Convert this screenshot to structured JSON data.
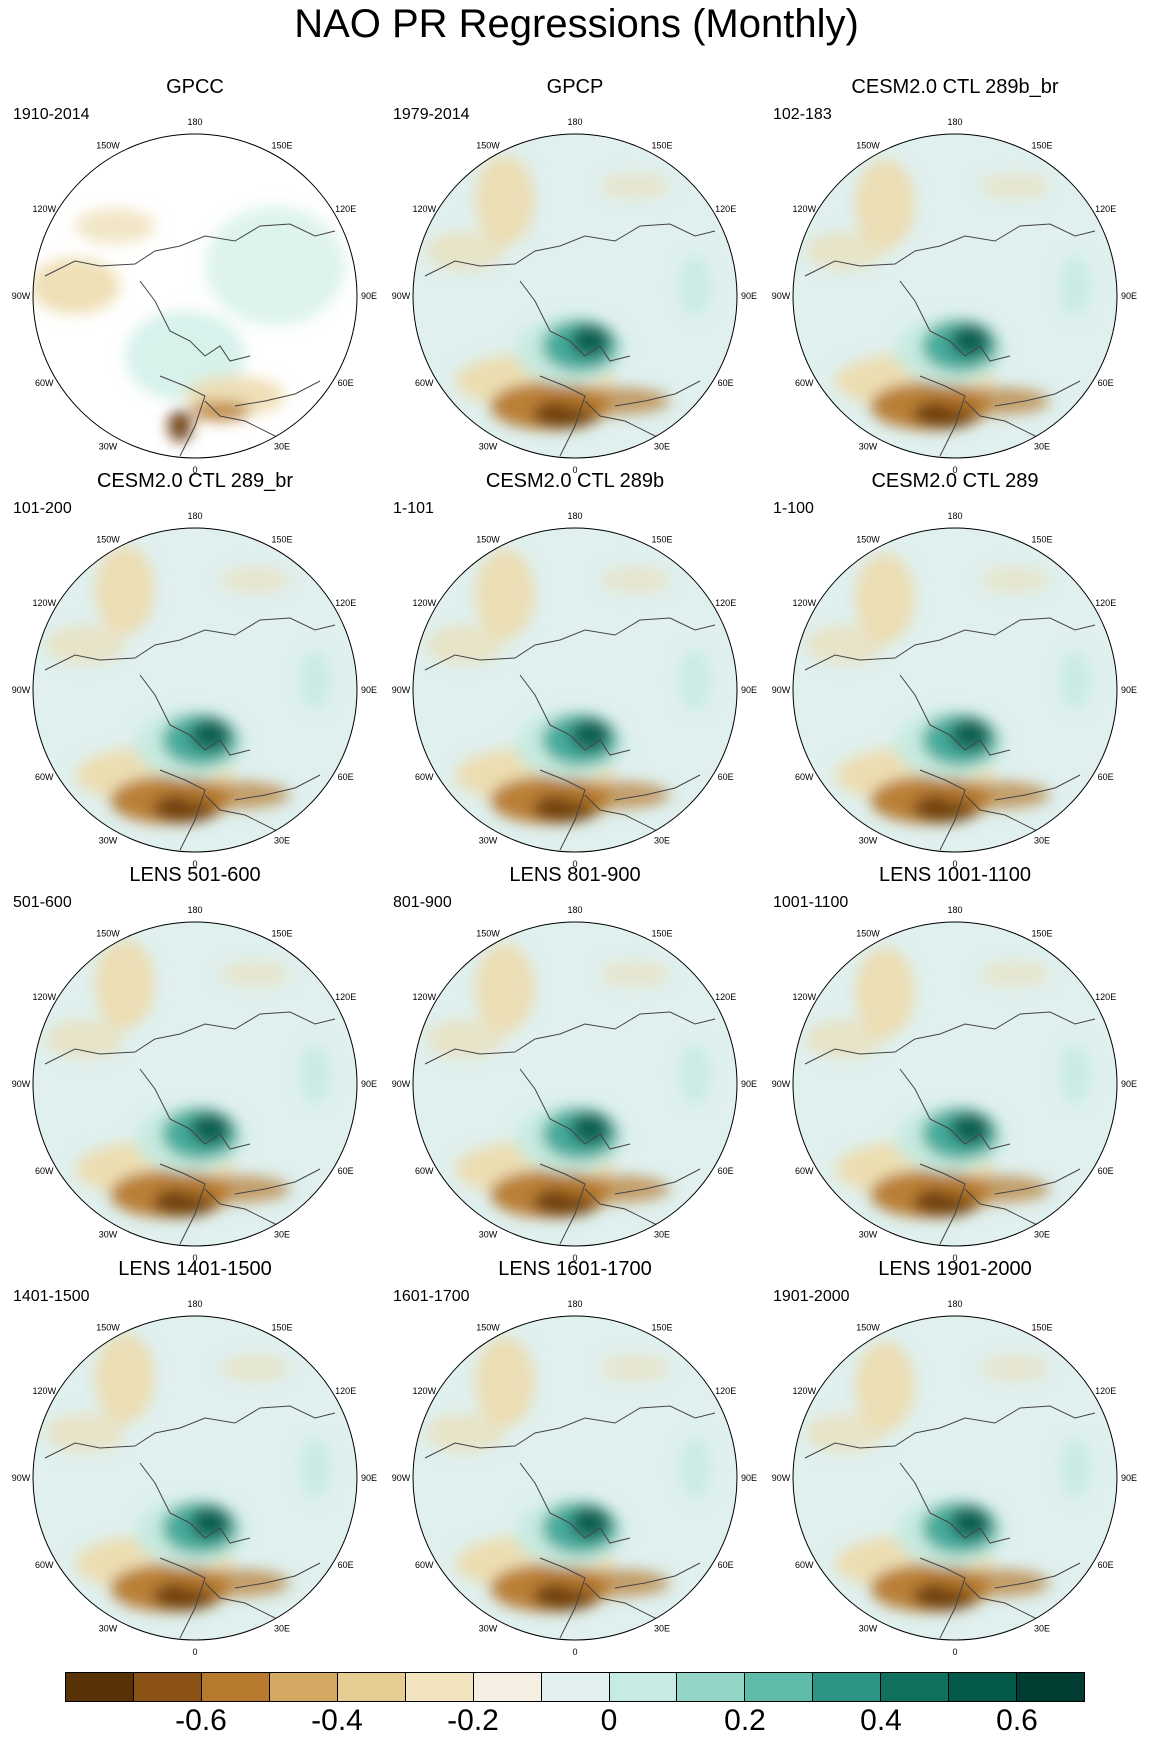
{
  "title": "NAO PR Regressions (Monthly)",
  "colors": {
    "land_outline": "#444444",
    "missing": "#ffffff",
    "map_bg": "#dff0ef",
    "neg_strong": "#6b3c0c",
    "neg_mid": "#b77a2f",
    "neg_weak": "#eddcae",
    "pos_weak": "#c6ebe2",
    "pos_mid": "#3fa898",
    "pos_strong": "#0d5c4e"
  },
  "lon_labels": [
    "180",
    "150E",
    "120E",
    "90E",
    "60E",
    "30E",
    "0",
    "30W",
    "60W",
    "90W",
    "120W",
    "150W"
  ],
  "panels": [
    {
      "title": "GPCC",
      "period": "1910-2014",
      "land_only": true
    },
    {
      "title": "GPCP",
      "period": "1979-2014",
      "land_only": false
    },
    {
      "title": "CESM2.0 CTL 289b_br",
      "period": "102-183",
      "land_only": false
    },
    {
      "title": "CESM2.0 CTL 289_br",
      "period": "101-200",
      "land_only": false
    },
    {
      "title": "CESM2.0 CTL 289b",
      "period": "1-101",
      "land_only": false
    },
    {
      "title": "CESM2.0 CTL 289",
      "period": "1-100",
      "land_only": false
    },
    {
      "title": "LENS 501-600",
      "period": "501-600",
      "land_only": false
    },
    {
      "title": "LENS 801-900",
      "period": "801-900",
      "land_only": false
    },
    {
      "title": "LENS 1001-1100",
      "period": "1001-1100",
      "land_only": false
    },
    {
      "title": "LENS 1401-1500",
      "period": "1401-1500",
      "land_only": false
    },
    {
      "title": "LENS 1601-1700",
      "period": "1601-1700",
      "land_only": false
    },
    {
      "title": "LENS 1901-2000",
      "period": "1901-2000",
      "land_only": false
    }
  ],
  "colorbar": {
    "colors": [
      "#5a3208",
      "#8a5214",
      "#b77a2f",
      "#d3a860",
      "#e6cc93",
      "#f3e4c0",
      "#f5efe3",
      "#e2f1f0",
      "#c6ebe2",
      "#93d6c8",
      "#5fbcab",
      "#2e9584",
      "#12705f",
      "#045a4a",
      "#023d33"
    ],
    "labels": [
      {
        "text": "-0.6",
        "index": 2
      },
      {
        "text": "-0.4",
        "index": 4
      },
      {
        "text": "-0.2",
        "index": 6
      },
      {
        "text": "0",
        "index": 8
      },
      {
        "text": "0.2",
        "index": 10
      },
      {
        "text": "0.4",
        "index": 12
      },
      {
        "text": "0.6",
        "index": 14
      }
    ]
  }
}
